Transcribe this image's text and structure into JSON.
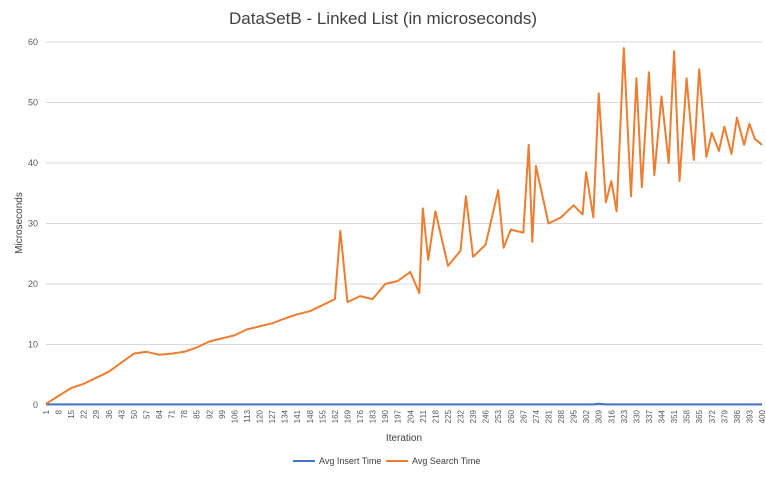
{
  "chart_data": {
    "type": "line",
    "title": "DataSetB - Linked List (in microseconds)",
    "xlabel": "Iteration",
    "ylabel": "Microseconds",
    "ylim": [
      0,
      60
    ],
    "y_ticks": [
      0,
      10,
      20,
      30,
      40,
      50,
      60
    ],
    "grid": true,
    "legend_position": "bottom",
    "x_tick_labels": [
      1,
      8,
      15,
      22,
      29,
      36,
      43,
      50,
      57,
      64,
      71,
      78,
      85,
      92,
      99,
      106,
      113,
      120,
      127,
      134,
      141,
      148,
      155,
      162,
      169,
      176,
      183,
      190,
      197,
      204,
      211,
      218,
      225,
      232,
      239,
      246,
      253,
      260,
      267,
      274,
      281,
      288,
      295,
      302,
      309,
      316,
      323,
      330,
      337,
      344,
      351,
      358,
      365,
      372,
      379,
      386,
      393,
      400
    ],
    "x": [
      1,
      8,
      15,
      22,
      29,
      36,
      43,
      50,
      57,
      64,
      71,
      78,
      85,
      92,
      99,
      106,
      113,
      120,
      127,
      134,
      141,
      148,
      155,
      162,
      165,
      169,
      176,
      183,
      190,
      197,
      204,
      209,
      211,
      214,
      218,
      225,
      232,
      235,
      239,
      246,
      253,
      256,
      260,
      267,
      270,
      272,
      274,
      281,
      288,
      295,
      300,
      302,
      306,
      309,
      313,
      316,
      319,
      323,
      327,
      330,
      333,
      337,
      340,
      344,
      348,
      351,
      354,
      358,
      362,
      365,
      369,
      372,
      376,
      379,
      383,
      386,
      390,
      393,
      396,
      400
    ],
    "series": [
      {
        "name": "Avg Insert Time",
        "color": "#4472c4",
        "values": [
          0.1,
          0.1,
          0.1,
          0.1,
          0.1,
          0.1,
          0.1,
          0.1,
          0.1,
          0.1,
          0.1,
          0.1,
          0.1,
          0.1,
          0.1,
          0.1,
          0.1,
          0.1,
          0.1,
          0.1,
          0.1,
          0.1,
          0.1,
          0.1,
          0.1,
          0.1,
          0.1,
          0.1,
          0.1,
          0.1,
          0.1,
          0.1,
          0.1,
          0.1,
          0.1,
          0.1,
          0.1,
          0.1,
          0.1,
          0.1,
          0.1,
          0.1,
          0.1,
          0.1,
          0.1,
          0.1,
          0.1,
          0.1,
          0.1,
          0.1,
          0.1,
          0.1,
          0.1,
          0.2,
          0.1,
          0.1,
          0.1,
          0.1,
          0.1,
          0.1,
          0.1,
          0.1,
          0.1,
          0.1,
          0.1,
          0.1,
          0.1,
          0.1,
          0.1,
          0.1,
          0.1,
          0.1,
          0.1,
          0.1,
          0.1,
          0.1,
          0.1,
          0.1,
          0.1,
          0.1
        ]
      },
      {
        "name": "Avg Search Time",
        "color": "#ed7d31",
        "values": [
          0.2,
          1.5,
          2.8,
          3.5,
          4.5,
          5.5,
          7.0,
          8.5,
          8.8,
          8.3,
          8.5,
          8.8,
          9.5,
          10.5,
          11.0,
          11.5,
          12.5,
          13.0,
          13.5,
          14.3,
          15.0,
          15.5,
          16.5,
          17.5,
          28.8,
          17.0,
          18.0,
          17.5,
          20.0,
          20.5,
          22.0,
          18.5,
          32.5,
          24.0,
          32.0,
          23.0,
          25.5,
          34.5,
          24.5,
          26.5,
          35.5,
          26.0,
          29.0,
          28.5,
          43.0,
          27.0,
          39.5,
          30.0,
          31.0,
          33.0,
          31.5,
          38.5,
          31.0,
          51.5,
          33.5,
          37.0,
          32.0,
          59.0,
          34.5,
          54.0,
          36.0,
          55.0,
          38.0,
          51.0,
          40.0,
          58.5,
          37.0,
          54.0,
          40.5,
          55.5,
          41.0,
          45.0,
          42.0,
          46.0,
          41.5,
          47.5,
          43.0,
          46.5,
          44.0,
          43.0
        ]
      }
    ]
  }
}
